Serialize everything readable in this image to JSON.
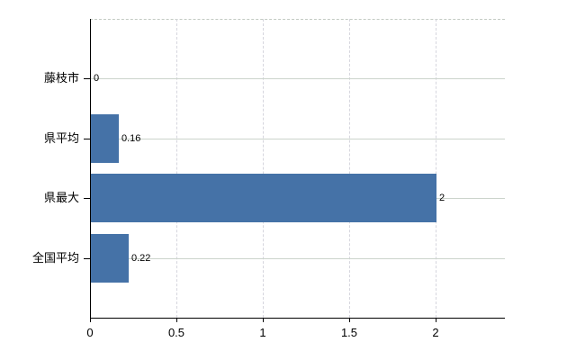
{
  "chart_data": {
    "type": "bar",
    "orientation": "horizontal",
    "title": "",
    "xlabel": "",
    "ylabel": "",
    "categories": [
      "藤枝市",
      "県平均",
      "県最大",
      "全国平均"
    ],
    "values": [
      0,
      0.16,
      2,
      0.22
    ],
    "value_labels": [
      "0",
      "0.16",
      "2",
      "0.22"
    ],
    "xticks": [
      0,
      0.5,
      1,
      1.5,
      2
    ],
    "xtick_labels": [
      "0",
      "0.5",
      "1",
      "1.5",
      "2"
    ],
    "xlim": [
      0,
      2.4
    ],
    "grid": true,
    "legend_position": "none",
    "colors": {
      "bar": "#4572a7",
      "horizontal_gridline": "#ccd4cc",
      "vertical_gridline": "#d6d6de",
      "top_border": "#c3cbc3",
      "axis": "#000000",
      "text": "#000000",
      "background": "#ffffff"
    }
  }
}
